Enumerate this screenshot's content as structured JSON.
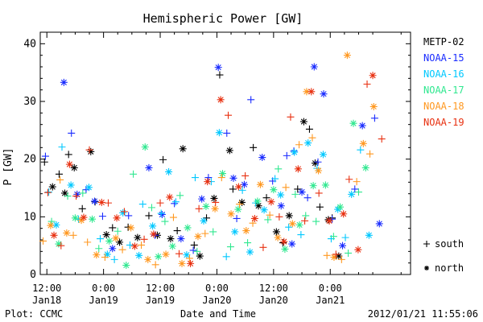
{
  "chart_data": {
    "type": "scatter",
    "title": "Hemispheric Power [GW]",
    "ylabel": "P [GW]",
    "xlabel": "Date and Time",
    "footer_left": "Plot: CCMC",
    "footer_right": "2012/01/21 11:55:06",
    "ylim": [
      0,
      42
    ],
    "yticks": [
      0,
      10,
      20,
      30,
      40
    ],
    "xlim_hours": [
      -1.4,
      77
    ],
    "xticks": [
      {
        "hour": 0,
        "line1": "12:00",
        "line2": "Jan18"
      },
      {
        "hour": 12,
        "line1": "0:00",
        "line2": "Jan19"
      },
      {
        "hour": 24,
        "line1": "12:00",
        "line2": "Jan19"
      },
      {
        "hour": 36,
        "line1": "0:00",
        "line2": "Jan20"
      },
      {
        "hour": 48,
        "line1": "12:00",
        "line2": "Jan20"
      },
      {
        "hour": 60,
        "line1": "0:00",
        "line2": "Jan21"
      }
    ],
    "marker_legend": [
      {
        "symbol": "+",
        "label": "south"
      },
      {
        "symbol": "*",
        "label": "north"
      }
    ],
    "grid": false,
    "legend_position": "right",
    "series": [
      {
        "name": "METP-02",
        "color": "#000000",
        "x": [
          -0.5,
          1.2,
          2.6,
          3.8,
          4.6,
          5.8,
          7.5,
          9.3,
          10.2,
          12.6,
          13.9,
          15.4,
          17.2,
          19.2,
          21.6,
          23.4,
          24.6,
          26.2,
          27.6,
          28.8,
          31.2,
          32.4,
          33.8,
          35.4,
          36.6,
          38.7,
          39.4,
          41.3,
          43.7,
          44.8,
          46.5,
          48.6,
          50.0,
          51.3,
          53.1,
          54.4,
          55.6,
          56.8,
          57.8,
          59.6,
          60.4,
          61.8
        ],
        "y": [
          19.5,
          15.2,
          17.4,
          14.1,
          20.8,
          18.5,
          11.4,
          21.3,
          12.6,
          6.9,
          8.1,
          5.6,
          8.2,
          6.4,
          10.2,
          6.8,
          19.9,
          6.2,
          7.6,
          21.8,
          5.1,
          3.2,
          9.8,
          13.2,
          34.6,
          21.5,
          14.8,
          12.5,
          22.0,
          11.9,
          13.3,
          7.4,
          5.5,
          10.2,
          14.8,
          26.5,
          25.2,
          19.3,
          11.7,
          9.5,
          9.8,
          3.2
        ]
      },
      {
        "name": "NOAA-15",
        "color": "#1a2cff",
        "x": [
          -0.3,
          3.6,
          5.2,
          6.4,
          8.3,
          10.1,
          11.8,
          13.9,
          17.3,
          21.6,
          22.9,
          24.4,
          27.0,
          28.4,
          31.0,
          32.8,
          34.2,
          36.3,
          38.1,
          39.5,
          40.2,
          41.8,
          43.2,
          45.6,
          47.8,
          49.6,
          50.8,
          51.9,
          52.3,
          54.0,
          55.2,
          56.6,
          57.4,
          58.6,
          60.4,
          62.6,
          65.2,
          66.8,
          69.4,
          70.4
        ],
        "y": [
          20.5,
          33.3,
          24.5,
          13.9,
          14.7,
          12.7,
          10.1,
          4.5,
          10.2,
          18.5,
          6.8,
          10.4,
          12.3,
          6.2,
          4.2,
          13.1,
          16.8,
          35.9,
          24.5,
          16.7,
          9.7,
          15.6,
          30.3,
          20.3,
          16.2,
          11.9,
          20.6,
          5.3,
          21.4,
          14.3,
          13.3,
          36.0,
          19.5,
          31.3,
          9.6,
          5.0,
          14.8,
          25.8,
          27.1,
          8.8
        ]
      },
      {
        "name": "NOAA-16",
        "color": "#00c8ff",
        "x": [
          0.4,
          2.0,
          3.2,
          5.1,
          6.7,
          8.9,
          11.3,
          12.8,
          14.3,
          16.1,
          17.6,
          19.5,
          20.3,
          22.4,
          24.2,
          25.8,
          27.3,
          29.6,
          31.4,
          33.2,
          34.8,
          36.5,
          38.0,
          39.8,
          41.4,
          43.0,
          44.2,
          46.0,
          48.3,
          49.5,
          51.2,
          52.4,
          53.8,
          55.3,
          57.2,
          58.5,
          60.2,
          61.6,
          63.2,
          64.5,
          66.4,
          68.2
        ],
        "y": [
          14.3,
          8.6,
          22.1,
          15.5,
          9.6,
          15.1,
          6.2,
          3.5,
          2.6,
          10.7,
          5.1,
          3.3,
          12.2,
          8.4,
          10.6,
          17.8,
          12.6,
          3.4,
          16.8,
          9.3,
          16.1,
          24.6,
          3.1,
          7.4,
          14.6,
          3.9,
          12.4,
          11.2,
          16.6,
          13.8,
          8.2,
          21.2,
          6.9,
          22.8,
          18.4,
          20.8,
          6.2,
          11.3,
          6.4,
          13.9,
          21.6,
          6.8
        ]
      },
      {
        "name": "NOAA-17",
        "color": "#30e890",
        "x": [
          1.0,
          2.5,
          4.4,
          6.0,
          7.6,
          9.6,
          11.0,
          13.2,
          15.0,
          16.8,
          18.3,
          20.8,
          22.2,
          23.6,
          25.0,
          26.6,
          28.2,
          29.8,
          31.8,
          33.7,
          35.2,
          37.2,
          38.9,
          40.5,
          42.5,
          44.6,
          46.8,
          48.0,
          49.0,
          50.4,
          52.6,
          53.5,
          54.8,
          56.4,
          57.0,
          59.0,
          60.7,
          62.1,
          63.8,
          64.9,
          66.0,
          67.5
        ],
        "y": [
          9.2,
          5.3,
          13.6,
          9.8,
          14.1,
          9.6,
          4.5,
          5.8,
          7.5,
          1.6,
          17.4,
          22.1,
          11.6,
          3.1,
          9.2,
          4.9,
          13.7,
          8.1,
          4.0,
          11.8,
          7.4,
          17.5,
          4.8,
          11.3,
          5.5,
          12.7,
          9.5,
          14.7,
          18.3,
          4.4,
          13.9,
          8.6,
          10.2,
          15.4,
          9.2,
          15.5,
          6.6,
          11.7,
          3.7,
          26.2,
          14.3,
          18.5
        ]
      },
      {
        "name": "NOAA-18",
        "color": "#ff9820",
        "x": [
          -0.8,
          0.8,
          2.8,
          4.2,
          5.6,
          7.3,
          8.6,
          10.5,
          12.3,
          14.6,
          16.0,
          17.8,
          20.0,
          21.4,
          23.0,
          25.2,
          26.8,
          28.6,
          30.2,
          32.0,
          33.5,
          35.6,
          37.0,
          39.0,
          40.8,
          42.2,
          43.6,
          45.2,
          47.2,
          48.9,
          50.6,
          52.0,
          53.4,
          55.0,
          56.2,
          57.5,
          59.3,
          60.8,
          62.4,
          63.6,
          65.6,
          67.0,
          68.4,
          69.2
        ],
        "y": [
          5.8,
          8.5,
          16.4,
          7.2,
          6.8,
          9.4,
          5.6,
          3.4,
          3.0,
          6.3,
          4.3,
          8.1,
          5.1,
          2.6,
          1.7,
          3.5,
          9.9,
          1.9,
          2.8,
          6.6,
          7.1,
          11.4,
          16.8,
          10.5,
          12.2,
          7.6,
          8.9,
          15.6,
          10.3,
          6.4,
          15.1,
          8.8,
          22.5,
          31.7,
          23.7,
          18.0,
          3.3,
          3.0,
          2.6,
          38.0,
          16.1,
          22.7,
          20.9,
          29.1
        ]
      },
      {
        "name": "NOAA-19",
        "color": "#e83010",
        "x": [
          0.2,
          1.5,
          3.0,
          4.8,
          6.2,
          7.8,
          9.0,
          11.6,
          13.0,
          14.8,
          16.4,
          18.6,
          20.6,
          22.6,
          24.0,
          26.0,
          28.0,
          30.4,
          32.2,
          34.0,
          35.7,
          36.8,
          38.4,
          40.6,
          42.0,
          44.0,
          45.8,
          47.5,
          49.2,
          50.2,
          51.6,
          53.2,
          54.6,
          56.0,
          57.6,
          59.8,
          61.2,
          62.8,
          64.0,
          65.9,
          67.8,
          69.0,
          70.9
        ],
        "y": [
          14.2,
          6.8,
          5.0,
          19.1,
          13.6,
          9.9,
          21.6,
          12.5,
          12.4,
          9.8,
          10.9,
          4.9,
          6.1,
          7.0,
          12.4,
          13.4,
          3.6,
          1.9,
          11.4,
          16.1,
          12.5,
          30.3,
          27.6,
          15.2,
          17.1,
          9.7,
          4.7,
          12.6,
          10.0,
          5.7,
          27.3,
          18.3,
          9.3,
          31.7,
          14.1,
          9.3,
          3.5,
          10.5,
          16.5,
          4.3,
          33.0,
          34.5,
          23.5
        ]
      }
    ]
  }
}
